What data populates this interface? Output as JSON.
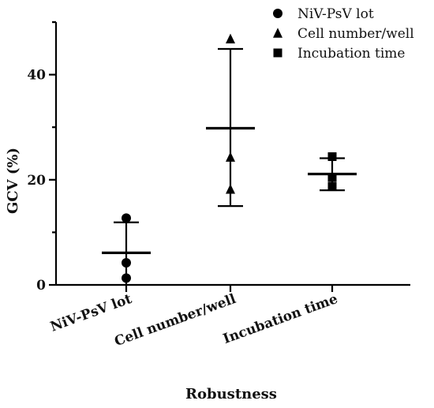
{
  "chart_data": {
    "type": "scatter",
    "ylabel": "GCV (%)",
    "xlabel": "Robustness",
    "ylim": [
      0,
      50
    ],
    "yticks": [
      0,
      20,
      40
    ],
    "categories": [
      "NiV-PsV lot",
      "Cell number/well",
      "Incubation time"
    ],
    "legend_position": "top-right",
    "series": [
      {
        "name": "NiV-PsV lot",
        "marker": "circle",
        "points": [
          12.7,
          4.2,
          1.3
        ],
        "mean": 6.1,
        "error": [
          0,
          11.9
        ]
      },
      {
        "name": "Cell number/well",
        "marker": "triangle",
        "points": [
          46.8,
          24.3,
          18.2
        ],
        "mean": 29.8,
        "error": [
          15.0,
          44.9
        ]
      },
      {
        "name": "Incubation time",
        "marker": "square",
        "points": [
          24.4,
          20.4,
          18.7
        ],
        "mean": 21.1,
        "error": [
          18.0,
          24.1
        ]
      }
    ]
  }
}
